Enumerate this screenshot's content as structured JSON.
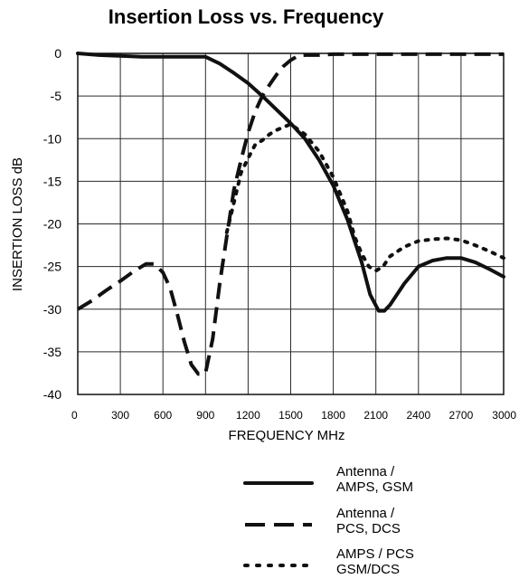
{
  "chart_data": {
    "type": "line",
    "title": "Insertion Loss vs. Frequency",
    "xlabel": "FREQUENCY MHz",
    "ylabel": "INSERTION LOSS dB",
    "xlim": [
      0,
      3000
    ],
    "ylim": [
      -40,
      0
    ],
    "xticks": [
      "0",
      "300",
      "600",
      "900",
      "1200",
      "1500",
      "1800",
      "2100",
      "2400",
      "2700",
      "3000"
    ],
    "yticks": [
      "0",
      "-5",
      "-10",
      "-15",
      "-20",
      "-25",
      "-30",
      "-35",
      "-40"
    ],
    "grid": true,
    "legend_position": "bottom-right",
    "series": [
      {
        "name": [
          "Antenna /",
          "AMPS, GSM"
        ],
        "style": "solid",
        "color": "#111111",
        "x": [
          0,
          150,
          300,
          450,
          600,
          750,
          900,
          1000,
          1100,
          1200,
          1300,
          1400,
          1500,
          1600,
          1700,
          1800,
          1900,
          2000,
          2060,
          2120,
          2160,
          2200,
          2300,
          2400,
          2500,
          2600,
          2700,
          2800,
          2900,
          3000
        ],
        "y": [
          0,
          -0.2,
          -0.3,
          -0.4,
          -0.4,
          -0.4,
          -0.4,
          -1.2,
          -2.3,
          -3.5,
          -5,
          -6.6,
          -8.2,
          -10,
          -12.5,
          -15.5,
          -19.5,
          -24.5,
          -28.3,
          -30.2,
          -30.2,
          -29.5,
          -27,
          -25,
          -24.3,
          -24,
          -24,
          -24.5,
          -25.3,
          -26.2
        ]
      },
      {
        "name": [
          "Antenna /",
          "PCS, DCS"
        ],
        "style": "dashed",
        "color": "#111111",
        "x": [
          0,
          100,
          200,
          300,
          400,
          480,
          540,
          600,
          650,
          700,
          750,
          800,
          850,
          900,
          950,
          1000,
          1050,
          1100,
          1150,
          1200,
          1250,
          1300,
          1350,
          1400,
          1450,
          1500,
          1550,
          1600,
          1700,
          1800,
          1900,
          2000,
          2200,
          2500,
          2800,
          3000
        ],
        "y": [
          -30,
          -29,
          -27.8,
          -26.7,
          -25.5,
          -24.7,
          -24.7,
          -25.7,
          -27.5,
          -30.5,
          -33.8,
          -36.5,
          -37.6,
          -37.5,
          -33.5,
          -27,
          -21.5,
          -16,
          -12.5,
          -9.3,
          -6.8,
          -5,
          -3.7,
          -2.5,
          -1.5,
          -0.8,
          -0.3,
          -0.2,
          -0.2,
          -0.1,
          -0.1,
          -0.1,
          -0.1,
          -0.1,
          -0.1,
          -0.1
        ]
      },
      {
        "name": [
          "AMPS / PCS",
          "GSM/DCS"
        ],
        "style": "dotted",
        "color": "#111111",
        "x": [
          1050,
          1100,
          1150,
          1200,
          1250,
          1300,
          1350,
          1400,
          1500,
          1600,
          1700,
          1800,
          1900,
          1950,
          2000,
          2050,
          2100,
          2150,
          2200,
          2300,
          2400,
          2500,
          2600,
          2700,
          2800,
          2900,
          3000
        ],
        "y": [
          -21,
          -17.5,
          -14,
          -12.3,
          -10.7,
          -10.2,
          -9.5,
          -9,
          -8.3,
          -9.5,
          -11.5,
          -14.5,
          -18.5,
          -21.5,
          -23.5,
          -25,
          -25.5,
          -25,
          -23.8,
          -22.7,
          -22,
          -21.8,
          -21.7,
          -21.9,
          -22.5,
          -23.2,
          -24
        ]
      }
    ]
  }
}
